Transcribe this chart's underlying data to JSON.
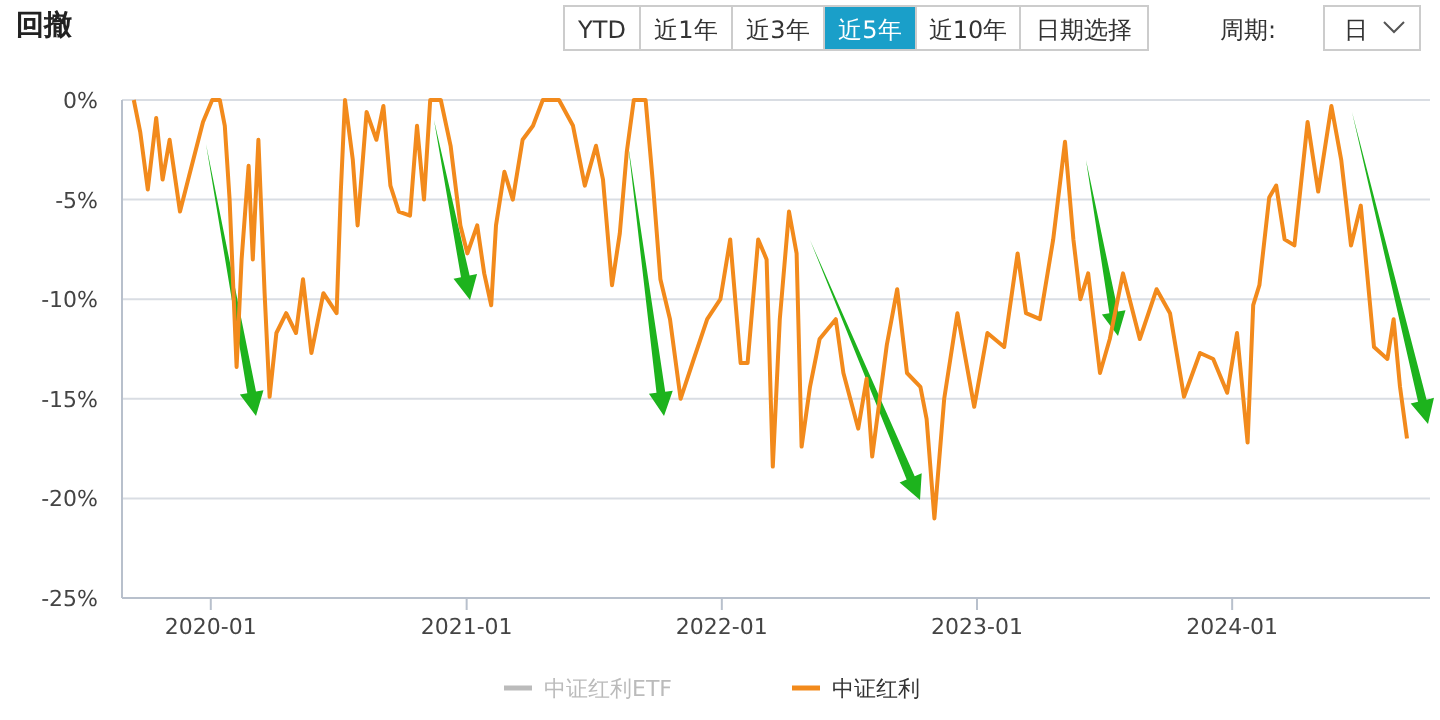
{
  "chart_data": {
    "type": "line",
    "title": "回撤",
    "annotations": [
      "YTD",
      "近1年",
      "近3年",
      "近5年",
      "近10年",
      "日期选择",
      "周期:",
      "日"
    ],
    "x": [
      "2019-09-13",
      "2019-09-22",
      "2019-10-03",
      "2019-10-15",
      "2019-10-24",
      "2019-11-03",
      "2019-11-18",
      "2019-12-01",
      "2019-12-21",
      "2020-01-03",
      "2020-01-14",
      "2020-01-21",
      "2020-01-28",
      "2020-02-07",
      "2020-02-14",
      "2020-02-24",
      "2020-03-01",
      "2020-03-09",
      "2020-03-18",
      "2020-03-25",
      "2020-04-04",
      "2020-04-18",
      "2020-05-02",
      "2020-05-12",
      "2020-05-24",
      "2020-06-10",
      "2020-06-29",
      "2020-07-05",
      "2020-07-11",
      "2020-07-22",
      "2020-07-29",
      "2020-08-11",
      "2020-08-25",
      "2020-09-04",
      "2020-09-14",
      "2020-09-26",
      "2020-10-12",
      "2020-10-22",
      "2020-11-01",
      "2020-11-10",
      "2020-11-25",
      "2020-12-09",
      "2020-12-23",
      "2021-01-02",
      "2021-01-16",
      "2021-01-26",
      "2021-02-05",
      "2021-02-12",
      "2021-02-24",
      "2021-03-08",
      "2021-03-22",
      "2021-04-06",
      "2021-04-20",
      "2021-05-13",
      "2021-06-02",
      "2021-06-19",
      "2021-07-05",
      "2021-07-15",
      "2021-07-28",
      "2021-08-08",
      "2021-08-18",
      "2021-08-28",
      "2021-09-14",
      "2021-09-24",
      "2021-10-05",
      "2021-10-19",
      "2021-11-03",
      "2021-11-22",
      "2021-12-11",
      "2021-12-30",
      "2022-01-13",
      "2022-01-28",
      "2022-02-07",
      "2022-02-22",
      "2022-03-06",
      "2022-03-15",
      "2022-03-25",
      "2022-04-07",
      "2022-04-18",
      "2022-04-25",
      "2022-05-07",
      "2022-05-21",
      "2022-06-13",
      "2022-06-24",
      "2022-07-15",
      "2022-07-27",
      "2022-08-04",
      "2022-08-25",
      "2022-09-09",
      "2022-09-23",
      "2022-10-12",
      "2022-10-21",
      "2022-11-01",
      "2022-11-15",
      "2022-12-04",
      "2022-12-28",
      "2023-01-16",
      "2023-02-09",
      "2023-02-28",
      "2023-03-12",
      "2023-04-01",
      "2023-04-20",
      "2023-05-07",
      "2023-05-19",
      "2023-05-29",
      "2023-06-09",
      "2023-06-26",
      "2023-07-10",
      "2023-07-29",
      "2023-08-22",
      "2023-09-15",
      "2023-10-04",
      "2023-10-24",
      "2023-11-16",
      "2023-12-05",
      "2023-12-25",
      "2024-01-08",
      "2024-01-23",
      "2024-01-31",
      "2024-02-09",
      "2024-02-23",
      "2024-03-04",
      "2024-03-16",
      "2024-03-30",
      "2024-04-18",
      "2024-05-03",
      "2024-05-22",
      "2024-06-05",
      "2024-06-19",
      "2024-07-03",
      "2024-07-22",
      "2024-08-10",
      "2024-08-19",
      "2024-08-28",
      "2024-09-07"
    ],
    "series": [
      {
        "name": "中证红利ETF",
        "color": "#bbbbbb",
        "values": [
          null,
          null,
          null,
          null,
          null,
          null,
          null,
          null,
          null,
          null,
          null,
          null,
          null,
          null,
          null,
          null,
          null,
          null,
          null,
          null,
          null,
          null,
          null,
          null,
          null,
          null,
          null,
          null,
          null,
          null,
          null,
          null,
          null,
          null,
          null,
          null,
          null,
          null,
          null,
          null,
          null,
          null,
          null,
          null,
          null,
          null,
          null,
          null,
          null,
          null,
          null,
          null,
          null,
          null,
          null,
          null,
          null,
          null,
          null,
          null,
          null,
          null,
          null,
          null,
          null,
          null,
          null,
          null,
          null,
          null,
          null,
          null,
          null,
          null,
          null,
          null,
          null,
          null,
          null,
          null,
          null,
          null,
          null,
          null,
          null,
          null,
          null,
          null,
          null,
          null,
          null,
          null,
          null,
          null,
          null,
          null,
          null,
          null,
          null,
          null,
          null,
          null,
          null,
          null,
          null,
          null,
          null,
          null,
          null,
          null,
          null,
          null,
          null,
          null,
          null,
          null,
          null,
          null,
          null,
          null,
          null,
          null,
          null,
          null,
          null,
          null,
          null,
          null,
          null,
          null,
          null,
          null,
          null,
          null,
          null
        ]
      },
      {
        "name": "中证红利",
        "color": "#f28a1c",
        "values": [
          0,
          -1.6,
          -4.5,
          -0.9,
          -4,
          -2,
          -5.6,
          -3.8,
          -1.1,
          0,
          0,
          -1.3,
          -5,
          -13.4,
          -8,
          -3.3,
          -8,
          -2,
          -9.7,
          -14.9,
          -11.7,
          -10.7,
          -11.7,
          -9,
          -12.7,
          -9.7,
          -10.7,
          -4.6,
          0,
          -3,
          -6.3,
          -0.6,
          -2,
          -0.3,
          -4.3,
          -5.6,
          -5.8,
          -1.3,
          -5,
          0,
          0,
          -2.3,
          -6.3,
          -7.7,
          -6.3,
          -8.7,
          -10.3,
          -6.3,
          -3.6,
          -5,
          -2,
          -1.3,
          0,
          0,
          -1.3,
          -4.3,
          -2.3,
          -4,
          -9.3,
          -6.7,
          -2.6,
          0,
          0,
          -4,
          -9,
          -11,
          -15,
          -13,
          -11,
          -10,
          -7,
          -13.2,
          -13.2,
          -7,
          -8,
          -18.4,
          -11,
          -5.6,
          -7.7,
          -17.4,
          -14.4,
          -12,
          -11,
          -13.7,
          -16.5,
          -14,
          -17.9,
          -12.3,
          -9.5,
          -13.7,
          -14.4,
          -16,
          -21,
          -15,
          -10.7,
          -15.4,
          -11.7,
          -12.4,
          -7.7,
          -10.7,
          -11,
          -7,
          -2.1,
          -7,
          -10,
          -8.7,
          -13.7,
          -12,
          -8.7,
          -12,
          -9.5,
          -10.7,
          -14.9,
          -12.7,
          -13,
          -14.7,
          -11.7,
          -17.2,
          -10.3,
          -9.3,
          -4.9,
          -4.3,
          -7,
          -7.3,
          -1.1,
          -4.6,
          -0.3,
          -3,
          -7.3,
          -5.3,
          -12.4,
          -13,
          -11,
          -14.4,
          -17
        ]
      }
    ],
    "xlim": [
      "2019-08-27",
      "2024-10-10"
    ],
    "xticks": [
      "2020-01",
      "2021-01",
      "2022-01",
      "2023-01",
      "2024-01"
    ],
    "ylim": [
      -25,
      0
    ],
    "yticks": [
      {
        "value": 0,
        "label": "0%"
      },
      {
        "value": -5,
        "label": "-5%"
      },
      {
        "value": -10,
        "label": "-10%"
      },
      {
        "value": -15,
        "label": "-15%"
      },
      {
        "value": -20,
        "label": "-20%"
      },
      {
        "value": -25,
        "label": "-25%"
      }
    ],
    "grid": "y",
    "legend": "bottom",
    "marker": "none",
    "line_style": "solid"
  }
}
